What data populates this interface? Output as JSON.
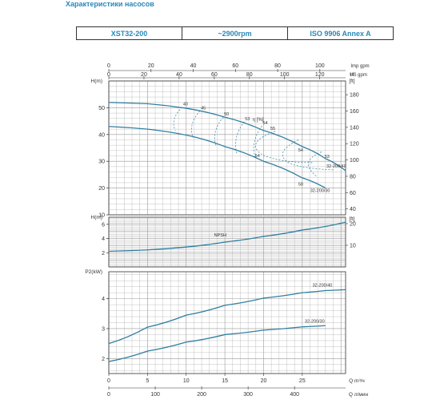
{
  "title": "Характеристики насосов",
  "spec": {
    "model": "XST32-200",
    "speed": "~2900rpm",
    "standard": "ISO 9906   Annex A"
  },
  "colors": {
    "accent": "#2a88b8",
    "curve": "#2f7fa0",
    "grid": "#9a9a9a"
  },
  "chart_data": [
    {
      "type": "line",
      "name": "head",
      "ylabel_left": "H(m)",
      "ylabel_right": "H [ft]",
      "ylim": [
        10,
        60
      ],
      "yticks": [
        10,
        20,
        30,
        40,
        50
      ],
      "yticks_right": [
        40,
        60,
        80,
        100,
        120,
        140,
        160,
        180
      ],
      "top_axes": [
        {
          "unit": "Imp gpm",
          "ticks": [
            0,
            20,
            40,
            60,
            80,
            100
          ],
          "max": 112.2
        },
        {
          "unit": "US gpm",
          "ticks": [
            0,
            20,
            40,
            60,
            80,
            100,
            120
          ],
          "max": 134.7
        }
      ],
      "series": [
        {
          "name": "32-200/40",
          "x": [
            0,
            5,
            10,
            15,
            20,
            25,
            28,
            30.6
          ],
          "y": [
            52,
            51.5,
            49.8,
            46.5,
            41.5,
            35.5,
            31,
            26.5
          ]
        },
        {
          "name": "32-200/30",
          "x": [
            0,
            5,
            10,
            15,
            20,
            25,
            28
          ],
          "y": [
            43,
            42,
            39.8,
            35.5,
            30,
            23.8,
            20
          ]
        }
      ],
      "efficiency_label": "η [%]",
      "efficiency_ticks": [
        "40",
        "45",
        "50",
        "53",
        "54",
        "55",
        "54",
        "53",
        "54",
        "50"
      ]
    },
    {
      "type": "line",
      "name": "npsh",
      "ylabel_left": "H(m)",
      "ylabel_right": "[ft]",
      "ylim": [
        0,
        7
      ],
      "yticks": [
        2,
        4,
        6
      ],
      "yticks_right": [
        10,
        20
      ],
      "series": [
        {
          "name": "NPSH",
          "x": [
            0,
            5,
            10,
            15,
            20,
            25,
            30.6
          ],
          "y": [
            2.2,
            2.4,
            2.8,
            3.5,
            4.3,
            5.2,
            6.3
          ]
        }
      ]
    },
    {
      "type": "line",
      "name": "power",
      "ylabel_left": "P2(kW)",
      "ylim": [
        1.5,
        4.9
      ],
      "yticks": [
        2,
        3,
        4
      ],
      "series": [
        {
          "name": "32-200/40",
          "x": [
            0,
            5,
            10,
            15,
            20,
            25,
            28,
            30.6
          ],
          "y": [
            2.5,
            3.05,
            3.45,
            3.78,
            4.02,
            4.2,
            4.27,
            4.3
          ]
        },
        {
          "name": "32-200/30",
          "x": [
            0,
            5,
            10,
            15,
            20,
            25,
            28
          ],
          "y": [
            1.9,
            2.25,
            2.55,
            2.8,
            2.95,
            3.06,
            3.1
          ]
        }
      ],
      "xlabel_bottom": "Q m³/ч",
      "xticks_bottom": [
        0,
        5,
        10,
        15,
        20,
        25
      ],
      "xlim": [
        0,
        30.6
      ],
      "xlabel_lower": "Q л/мин",
      "xticks_lower": [
        0,
        100,
        200,
        300,
        400
      ]
    }
  ]
}
